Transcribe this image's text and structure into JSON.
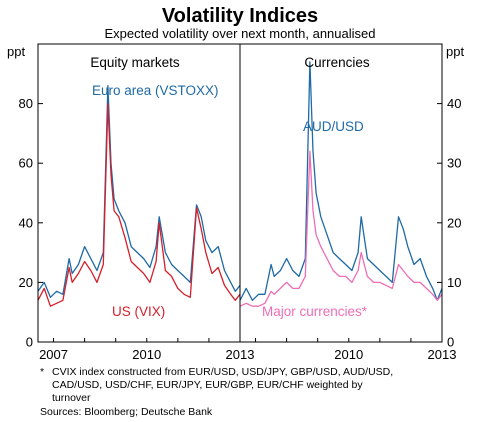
{
  "header": {
    "title": "Volatility Indices",
    "subtitle": "Expected volatility over next month, annualised"
  },
  "colors": {
    "euro_area": "#1f6aa5",
    "us_vix": "#d4202b",
    "aud_usd": "#1f6aa5",
    "major_currencies": "#ee6eb6",
    "frame": "#000000"
  },
  "footnote": {
    "marker": "*",
    "lines": [
      "CVIX index constructed from EUR/USD, USD/JPY, GBP/USD, AUD/USD,",
      "CAD/USD, USD/CHF, EUR/JPY, EUR/GBP, EUR/CHF weighted by",
      "turnover"
    ],
    "sources": "Sources: Bloomberg; Deutsche Bank"
  },
  "chart_data": [
    {
      "type": "line",
      "panel_title": "Equity markets",
      "ylabel": "ppt",
      "ylim": [
        0,
        100
      ],
      "yticks": [
        "0",
        "20",
        "40",
        "60",
        "80"
      ],
      "xlim": [
        2006.5,
        2013.0
      ],
      "xticks": [
        {
          "value": 2007,
          "label": "2007"
        },
        {
          "value": 2010,
          "label": "2010"
        },
        {
          "value": 2013,
          "label": "2013"
        }
      ],
      "series": [
        {
          "name": "Euro area (VSTOXX)",
          "color_key": "euro_area",
          "x": [
            2006.5,
            2006.7,
            2006.9,
            2007.1,
            2007.3,
            2007.5,
            2007.6,
            2007.8,
            2008.0,
            2008.2,
            2008.4,
            2008.6,
            2008.75,
            2008.85,
            2008.95,
            2009.1,
            2009.3,
            2009.5,
            2009.7,
            2009.9,
            2010.1,
            2010.3,
            2010.4,
            2010.6,
            2010.8,
            2011.0,
            2011.2,
            2011.4,
            2011.6,
            2011.75,
            2011.9,
            2012.1,
            2012.3,
            2012.5,
            2012.7,
            2012.85,
            2013.0
          ],
          "y": [
            17,
            20,
            15,
            17,
            16,
            28,
            23,
            26,
            32,
            28,
            24,
            30,
            86,
            60,
            48,
            44,
            40,
            32,
            30,
            28,
            25,
            32,
            42,
            30,
            26,
            24,
            22,
            20,
            46,
            42,
            34,
            30,
            32,
            24,
            20,
            17,
            19
          ]
        },
        {
          "name": "US (VIX)",
          "color_key": "us_vix",
          "x": [
            2006.5,
            2006.7,
            2006.9,
            2007.1,
            2007.3,
            2007.5,
            2007.6,
            2007.8,
            2008.0,
            2008.2,
            2008.4,
            2008.6,
            2008.75,
            2008.85,
            2008.95,
            2009.1,
            2009.3,
            2009.5,
            2009.7,
            2009.9,
            2010.1,
            2010.3,
            2010.4,
            2010.6,
            2010.8,
            2011.0,
            2011.2,
            2011.4,
            2011.6,
            2011.75,
            2011.9,
            2012.1,
            2012.3,
            2012.5,
            2012.7,
            2012.85,
            2013.0
          ],
          "y": [
            14,
            18,
            12,
            13,
            14,
            25,
            20,
            23,
            27,
            24,
            20,
            26,
            80,
            56,
            44,
            42,
            35,
            27,
            25,
            23,
            20,
            27,
            40,
            24,
            22,
            18,
            16,
            15,
            45,
            38,
            30,
            23,
            25,
            19,
            16,
            14,
            16
          ]
        }
      ]
    },
    {
      "type": "line",
      "panel_title": "Currencies",
      "ylabel": "ppt",
      "ylim": [
        0,
        50
      ],
      "yticks": [
        "0",
        "10",
        "20",
        "30",
        "40"
      ],
      "xlim": [
        2006.5,
        2013.0
      ],
      "xticks": [
        {
          "value": 2010,
          "label": "2010"
        },
        {
          "value": 2013,
          "label": "2013"
        }
      ],
      "series": [
        {
          "name": "AUD/USD",
          "color_key": "aud_usd",
          "x": [
            2006.5,
            2006.7,
            2006.9,
            2007.1,
            2007.3,
            2007.5,
            2007.6,
            2007.8,
            2008.0,
            2008.2,
            2008.4,
            2008.6,
            2008.75,
            2008.85,
            2008.95,
            2009.1,
            2009.3,
            2009.5,
            2009.7,
            2009.9,
            2010.1,
            2010.3,
            2010.4,
            2010.6,
            2010.8,
            2011.0,
            2011.2,
            2011.4,
            2011.6,
            2011.75,
            2011.9,
            2012.1,
            2012.3,
            2012.5,
            2012.7,
            2012.85,
            2013.0
          ],
          "y": [
            7,
            9,
            7,
            8,
            8,
            13,
            11,
            12,
            14,
            12,
            11,
            14,
            47,
            32,
            25,
            21,
            18,
            15,
            14,
            13,
            12,
            15,
            21,
            14,
            13,
            12,
            11,
            10,
            21,
            19,
            16,
            13,
            14,
            11,
            9,
            7,
            9
          ]
        },
        {
          "name": "Major currencies*",
          "color_key": "major_currencies",
          "x": [
            2006.5,
            2006.7,
            2006.9,
            2007.1,
            2007.3,
            2007.5,
            2007.6,
            2007.8,
            2008.0,
            2008.2,
            2008.4,
            2008.6,
            2008.75,
            2008.85,
            2008.95,
            2009.1,
            2009.3,
            2009.5,
            2009.7,
            2009.9,
            2010.1,
            2010.3,
            2010.4,
            2010.6,
            2010.8,
            2011.0,
            2011.2,
            2011.4,
            2011.6,
            2011.75,
            2011.9,
            2012.1,
            2012.3,
            2012.5,
            2012.7,
            2012.85,
            2013.0
          ],
          "y": [
            6,
            6.5,
            6,
            6,
            6.5,
            8.5,
            8,
            9,
            10,
            9,
            9,
            11,
            32,
            22,
            18,
            16,
            14,
            12,
            11,
            11,
            10,
            12,
            15,
            11,
            10,
            10,
            9.5,
            9,
            13,
            12,
            11,
            10,
            10,
            9,
            8,
            7,
            8
          ]
        }
      ]
    }
  ]
}
